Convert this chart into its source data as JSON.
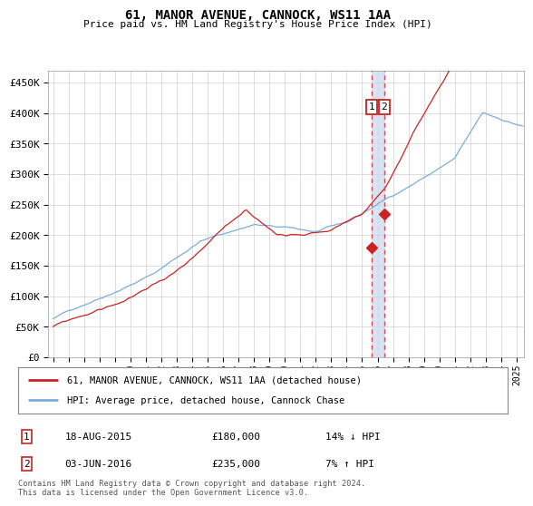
{
  "title": "61, MANOR AVENUE, CANNOCK, WS11 1AA",
  "subtitle": "Price paid vs. HM Land Registry's House Price Index (HPI)",
  "ylabel_ticks": [
    "£0",
    "£50K",
    "£100K",
    "£150K",
    "£200K",
    "£250K",
    "£300K",
    "£350K",
    "£400K",
    "£450K"
  ],
  "ytick_values": [
    0,
    50000,
    100000,
    150000,
    200000,
    250000,
    300000,
    350000,
    400000,
    450000
  ],
  "ylim": [
    0,
    470000
  ],
  "xlim_start": 1994.7,
  "xlim_end": 2025.5,
  "hpi_color": "#7aaddc",
  "price_color": "#cc2222",
  "vline_color": "#dd4444",
  "vband_color": "#c8d8ee",
  "annotation_box_color": "#cc2222",
  "legend_label_price": "61, MANOR AVENUE, CANNOCK, WS11 1AA (detached house)",
  "legend_label_hpi": "HPI: Average price, detached house, Cannock Chase",
  "transaction1_date": "18-AUG-2015",
  "transaction1_price": "£180,000",
  "transaction1_note": "14% ↓ HPI",
  "transaction2_date": "03-JUN-2016",
  "transaction2_price": "£235,000",
  "transaction2_note": "7% ↑ HPI",
  "vline1_x": 2015.63,
  "vline2_x": 2016.42,
  "point1_y": 180000,
  "point2_y": 235000,
  "footer": "Contains HM Land Registry data © Crown copyright and database right 2024.\nThis data is licensed under the Open Government Licence v3.0.",
  "xtick_years": [
    1995,
    1996,
    1997,
    1998,
    1999,
    2000,
    2001,
    2002,
    2003,
    2004,
    2005,
    2006,
    2007,
    2008,
    2009,
    2010,
    2011,
    2012,
    2013,
    2014,
    2015,
    2016,
    2017,
    2018,
    2019,
    2020,
    2021,
    2022,
    2023,
    2024,
    2025
  ]
}
